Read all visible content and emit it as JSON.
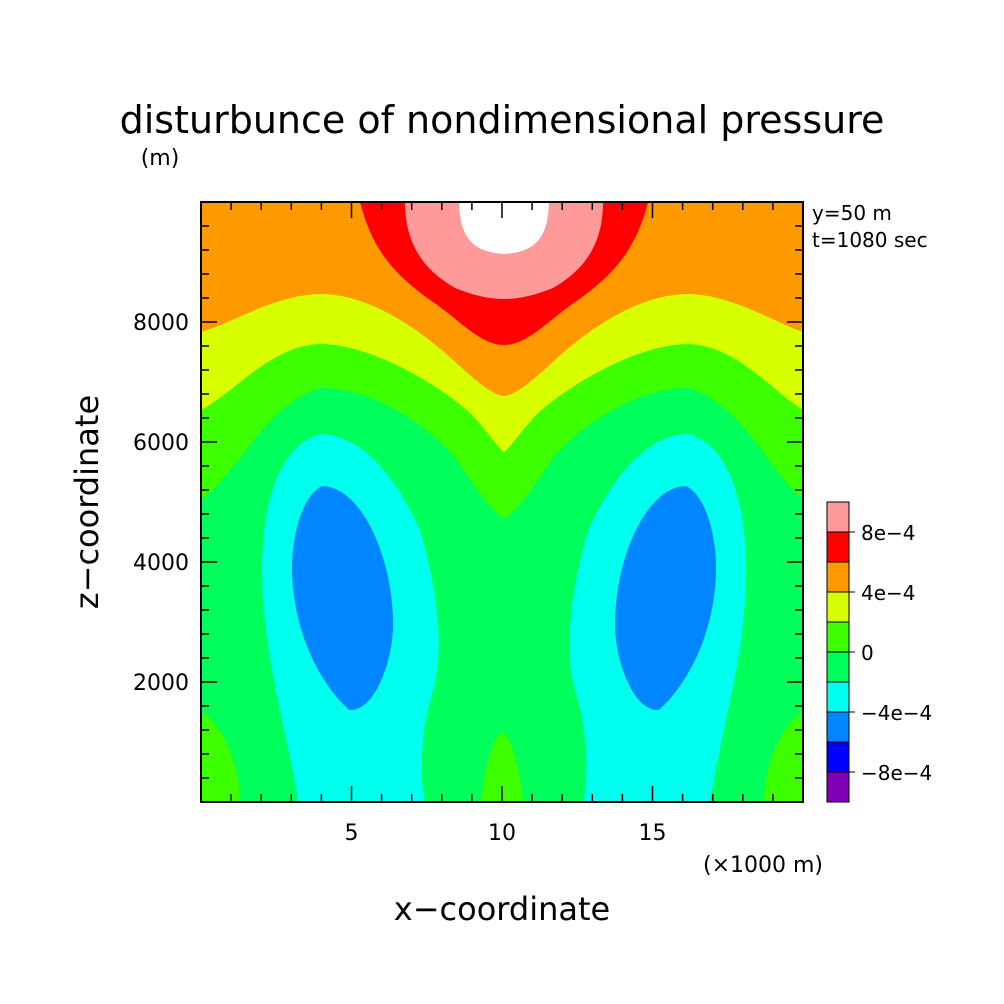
{
  "chart_data": {
    "type": "heatmap",
    "title": "disturbunce of nondimensional pressure",
    "ylabel": "z−coordinate",
    "ylabel_unit": "(m)",
    "xlabel": "x−coordinate",
    "xlabel_unit": "(×1000 m)",
    "annotations": [
      "y=50 m",
      "t=1080 sec"
    ],
    "xlim": [
      0,
      20
    ],
    "ylim": [
      0,
      10000
    ],
    "x_major_ticks": [
      5,
      10,
      15
    ],
    "x_minor_step": 1,
    "y_major_ticks": [
      2000,
      4000,
      6000,
      8000
    ],
    "y_minor_step": 400,
    "levels": {
      "unit": "nondimensional pressure disturbance",
      "bins": [
        {
          "range": [
            -0.001,
            -0.0008
          ],
          "color": "#7f00b4"
        },
        {
          "range": [
            -0.0008,
            -0.0006
          ],
          "color": "#0000ff"
        },
        {
          "range": [
            -0.0006,
            -0.0004
          ],
          "color": "#0087ff"
        },
        {
          "range": [
            -0.0004,
            -0.0002
          ],
          "color": "#00ffee"
        },
        {
          "range": [
            -0.0002,
            0.0
          ],
          "color": "#00ff5a"
        },
        {
          "range": [
            0.0,
            0.0002
          ],
          "color": "#3cff00"
        },
        {
          "range": [
            0.0002,
            0.0004
          ],
          "color": "#d7ff00"
        },
        {
          "range": [
            0.0004,
            0.0006
          ],
          "color": "#ff9900"
        },
        {
          "range": [
            0.0006,
            0.0008
          ],
          "color": "#ff0000"
        },
        {
          "range": [
            0.0008,
            0.001
          ],
          "color": "#ff9a9a"
        },
        {
          "range": [
            0.001,
            0.0012
          ],
          "color": "#ffffff"
        }
      ],
      "labels": [
        {
          "value": -0.0008,
          "text": "−8e−4"
        },
        {
          "value": -0.0004,
          "text": "−4e−4"
        },
        {
          "value": 0.0,
          "text": "0"
        },
        {
          "value": 0.0004,
          "text": "4e−4"
        },
        {
          "value": 0.0008,
          "text": "8e−4"
        }
      ]
    }
  }
}
